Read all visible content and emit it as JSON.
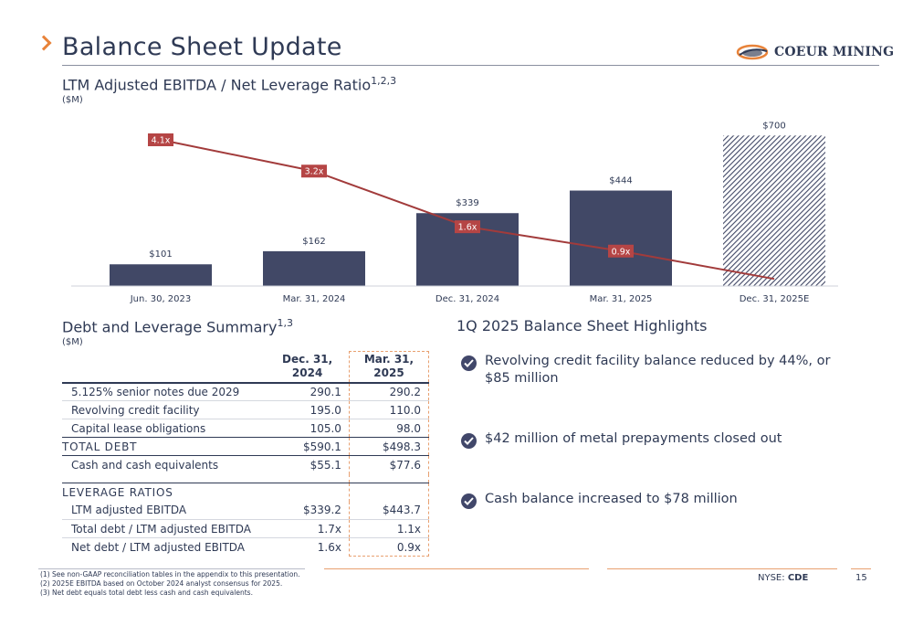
{
  "header": {
    "title": "Balance Sheet Update",
    "logo_text": "COEUR MINING",
    "logo_mark": "®"
  },
  "chart_section": {
    "title": "LTM Adjusted EBITDA / Net Leverage Ratio",
    "title_sup": "1,2,3",
    "units": "($M)"
  },
  "chart_data": {
    "type": "bar",
    "categories": [
      "Jun. 30, 2023",
      "Mar. 31, 2024",
      "Dec. 31, 2024",
      "Mar. 31, 2025",
      "Dec. 31, 2025E"
    ],
    "values": [
      101,
      162,
      339,
      444,
      700
    ],
    "value_labels": [
      "$101",
      "$162",
      "$339",
      "$444",
      "$700"
    ],
    "ylim": [
      0,
      800
    ],
    "line": {
      "values": [
        4.1,
        3.2,
        1.6,
        0.9,
        0.1
      ],
      "labels": [
        "4.1x",
        "3.2x",
        "1.6x",
        "0.9x",
        ""
      ],
      "ylim": [
        0,
        4.5
      ]
    },
    "colors": {
      "bar": "#414866",
      "bar_estimate_hatch": "#414866",
      "line": "#a23b3b",
      "label_bg": "#b54545"
    },
    "grid": false,
    "legend": "none"
  },
  "table_section": {
    "title": "Debt and Leverage Summary",
    "title_sup": "1,3",
    "units": "($M)",
    "columns": [
      "Dec. 31, 2024",
      "Mar. 31, 2025"
    ],
    "col1_line1": "Dec. 31,",
    "col1_line2": "2024",
    "col2_line1": "Mar. 31,",
    "col2_line2": "2025",
    "rows": [
      {
        "label": "5.125% senior notes due 2029",
        "v1": "290.1",
        "v2": "290.2"
      },
      {
        "label": "Revolving credit facility",
        "v1": "195.0",
        "v2": "110.0"
      },
      {
        "label": "Capital lease obligations",
        "v1": "105.0",
        "v2": "98.0"
      },
      {
        "label": "TOTAL DEBT",
        "v1": "$590.1",
        "v2": "$498.3"
      },
      {
        "label": "Cash and cash equivalents",
        "v1": "$55.1",
        "v2": "$77.6"
      },
      {
        "label": "LEVERAGE RATIOS",
        "v1": "",
        "v2": ""
      },
      {
        "label": "LTM adjusted EBITDA",
        "v1": "$339.2",
        "v2": "$443.7"
      },
      {
        "label": "Total debt / LTM adjusted EBITDA",
        "v1": "1.7x",
        "v2": "1.1x"
      },
      {
        "label": "Net debt / LTM adjusted EBITDA",
        "v1": "1.6x",
        "v2": "0.9x"
      }
    ]
  },
  "highlights": {
    "title": "1Q 2025 Balance Sheet Highlights",
    "items": [
      "Revolving credit facility balance reduced by 44%, or $85 million",
      "$42 million of metal prepayments closed out",
      "Cash balance increased to $78 million"
    ]
  },
  "footer": {
    "footnotes": [
      "(1)  See non-GAAP reconciliation tables in the appendix to this presentation.",
      "(2)  2025E EBITDA based on October 2024 analyst consensus for 2025.",
      "(3)  Net debt equals total debt less cash and cash equivalents."
    ],
    "exchange": "NYSE: ",
    "ticker": "CDE",
    "page": "15"
  }
}
